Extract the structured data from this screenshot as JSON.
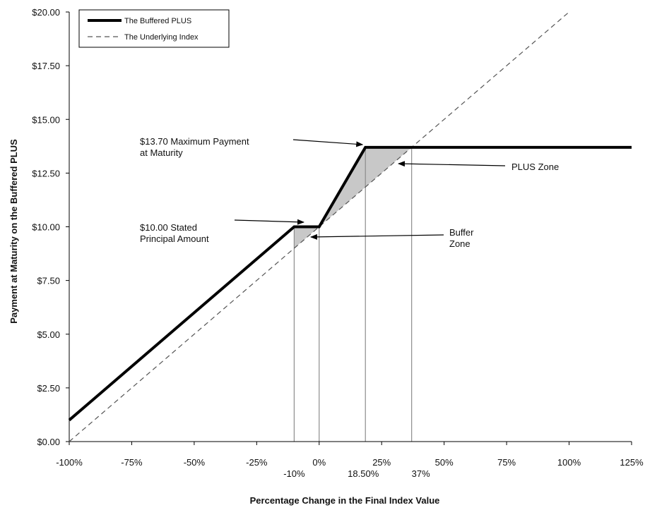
{
  "chart_data": {
    "type": "line",
    "xlabel": "Percentage Change in the Final Index Value",
    "ylabel": "Payment at Maturity on the Buffered PLUS",
    "xlim": [
      -100,
      125
    ],
    "ylim": [
      0,
      20
    ],
    "x_ticks": [
      -100,
      -75,
      -50,
      -25,
      0,
      25,
      50,
      75,
      100,
      125
    ],
    "x_tick_labels": [
      "-100%",
      "-75%",
      "-50%",
      "-25%",
      "0%",
      "25%",
      "50%",
      "75%",
      "100%",
      "125%"
    ],
    "y_ticks": [
      0,
      2.5,
      5,
      7.5,
      10,
      12.5,
      15,
      17.5,
      20
    ],
    "y_tick_labels": [
      "$0.00",
      "$2.50",
      "$5.00",
      "$7.50",
      "$10.00",
      "$12.50",
      "$15.00",
      "$17.50",
      "$20.00"
    ],
    "extra_x_labels": [
      {
        "x": -10,
        "text": "-10%"
      },
      {
        "x": 18.5,
        "text": "18.50%"
      },
      {
        "x": 37,
        "text": "37%"
      }
    ],
    "reference_lines_x": [
      -10,
      0,
      18.5,
      37
    ],
    "series": [
      {
        "name": "The Buffered PLUS",
        "style": "solid",
        "color": "#000000",
        "x": [
          -100,
          -10,
          0,
          18.5,
          125
        ],
        "y": [
          1,
          10,
          10,
          13.7,
          13.7
        ]
      },
      {
        "name": "The Underlying Index",
        "style": "dashed",
        "color": "#555555",
        "x": [
          -100,
          100
        ],
        "y": [
          0,
          20
        ]
      }
    ],
    "shaded_regions": [
      {
        "name": "Buffer Zone",
        "x": [
          -10,
          0
        ],
        "color": "#c8c8c8"
      },
      {
        "name": "PLUS Zone",
        "x": [
          0,
          37
        ],
        "color": "#c8c8c8"
      }
    ],
    "annotations": [
      {
        "lines": [
          "$13.70 Maximum Payment",
          "at Maturity"
        ],
        "target": [
          18.5,
          13.7
        ]
      },
      {
        "lines": [
          "PLUS Zone"
        ],
        "target": [
          30,
          13
        ]
      },
      {
        "lines": [
          "$10.00 Stated",
          "Principal Amount"
        ],
        "target": [
          -6,
          10
        ]
      },
      {
        "lines": [
          "Buffer",
          "Zone"
        ],
        "target": [
          -4,
          9.6
        ]
      }
    ],
    "legend_position": "top-left",
    "grid": false
  }
}
